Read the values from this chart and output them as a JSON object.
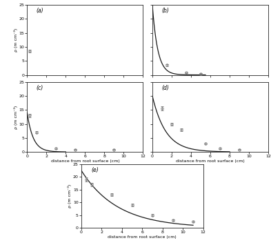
{
  "panels": [
    {
      "label": "(a)",
      "data_x": [
        0.25
      ],
      "data_y": [
        8.5
      ],
      "data_yerr": [
        0.5
      ],
      "has_model": false,
      "model_x_start": 0.0,
      "model_x_end": 0.0,
      "model_params": [
        0.0,
        0.0
      ],
      "xlim": [
        0,
        12
      ],
      "ylim": [
        0,
        25
      ],
      "yticks": [
        0,
        5,
        10,
        15,
        20,
        25
      ],
      "xticks": [
        0,
        2,
        4,
        6,
        8,
        10,
        12
      ],
      "show_xlabel": false,
      "show_ylabel": true,
      "show_xticklabels": false,
      "show_yticklabels": true
    },
    {
      "label": "(b)",
      "data_x": [
        1.5,
        3.5,
        5.0
      ],
      "data_y": [
        3.5,
        0.8,
        0.5
      ],
      "data_yerr": [
        0.3,
        0.15,
        0.1
      ],
      "has_model": true,
      "model_x_start": 0.0,
      "model_x_end": 5.5,
      "model_params": [
        25.0,
        -1.8
      ],
      "xlim": [
        0,
        12
      ],
      "ylim": [
        0,
        25
      ],
      "yticks": [
        0,
        5,
        10,
        15,
        20,
        25
      ],
      "xticks": [
        0,
        2,
        4,
        6,
        8,
        10,
        12
      ],
      "show_xlabel": false,
      "show_ylabel": false,
      "show_xticklabels": false,
      "show_yticklabels": false
    },
    {
      "label": "(c)",
      "data_x": [
        0.25,
        1.0,
        3.0,
        5.0,
        9.0
      ],
      "data_y": [
        13.0,
        7.0,
        1.2,
        0.8,
        0.8
      ],
      "data_yerr": [
        0.6,
        0.4,
        0.2,
        0.1,
        0.1
      ],
      "has_model": true,
      "model_x_start": 0.0,
      "model_x_end": 4.0,
      "model_params": [
        14.0,
        -1.6
      ],
      "xlim": [
        0,
        12
      ],
      "ylim": [
        0,
        25
      ],
      "yticks": [
        0,
        5,
        10,
        15,
        20,
        25
      ],
      "xticks": [
        0,
        2,
        4,
        6,
        8,
        10,
        12
      ],
      "show_xlabel": true,
      "show_ylabel": true,
      "show_xticklabels": true,
      "show_yticklabels": true
    },
    {
      "label": "(d)",
      "data_x": [
        1.0,
        2.0,
        3.0,
        5.5,
        7.0,
        9.0
      ],
      "data_y": [
        15.5,
        10.0,
        8.0,
        3.0,
        1.2,
        0.8
      ],
      "data_yerr": [
        0.8,
        0.5,
        0.5,
        0.35,
        0.2,
        0.1
      ],
      "has_model": true,
      "model_x_start": 0.0,
      "model_x_end": 8.0,
      "model_params": [
        20.0,
        -0.72
      ],
      "xlim": [
        0,
        12
      ],
      "ylim": [
        0,
        25
      ],
      "yticks": [
        0,
        5,
        10,
        15,
        20,
        25
      ],
      "xticks": [
        0,
        2,
        4,
        6,
        8,
        10,
        12
      ],
      "show_xlabel": true,
      "show_ylabel": false,
      "show_xticklabels": true,
      "show_yticklabels": false
    },
    {
      "label": "(e)",
      "data_x": [
        0.5,
        1.0,
        3.0,
        5.0,
        7.0,
        9.0,
        11.0
      ],
      "data_y": [
        19.0,
        17.0,
        13.0,
        9.0,
        5.0,
        3.0,
        2.5
      ],
      "data_yerr": [
        0.8,
        0.6,
        0.6,
        0.6,
        0.4,
        0.3,
        0.3
      ],
      "has_model": true,
      "model_x_start": 0.0,
      "model_x_end": 11.0,
      "model_params": [
        22.5,
        -0.28
      ],
      "xlim": [
        0,
        12
      ],
      "ylim": [
        0,
        25
      ],
      "yticks": [
        0,
        5,
        10,
        15,
        20,
        25
      ],
      "xticks": [
        0,
        2,
        4,
        6,
        8,
        10,
        12
      ],
      "show_xlabel": true,
      "show_ylabel": true,
      "show_xticklabels": true,
      "show_yticklabels": true
    }
  ],
  "ylabel": "ρ (m cm⁻³)",
  "xlabel": "distance from root surface (cm)",
  "bg_color": "#ffffff",
  "line_color": "#1a1a1a",
  "marker_color": "#888888",
  "marker_facecolor": "none"
}
